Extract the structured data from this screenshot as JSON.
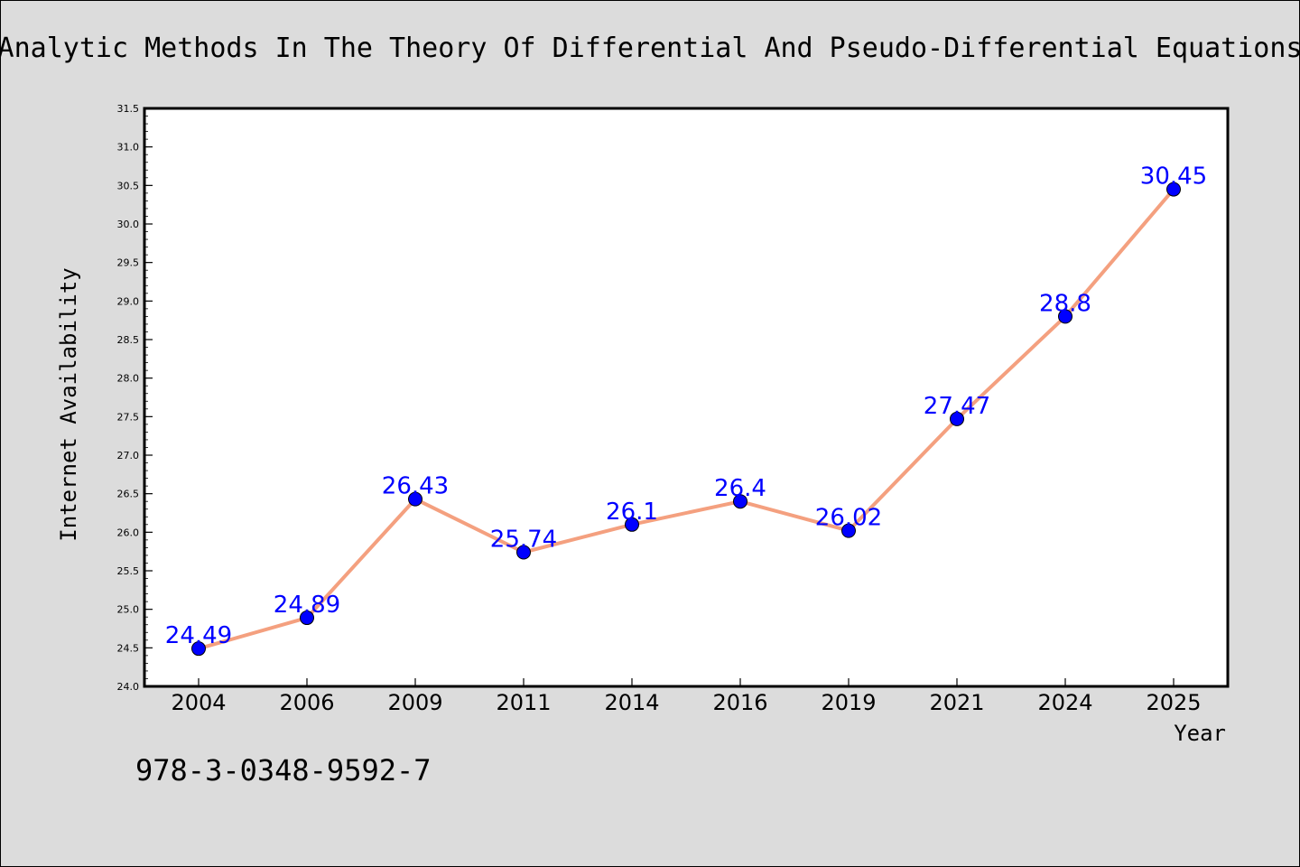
{
  "chart_data": {
    "type": "line",
    "title": "Analytic Methods In The Theory Of Differential And Pseudo-Differential Equations",
    "xlabel": "Year",
    "ylabel": "Internet Availability",
    "categories": [
      "2004",
      "2006",
      "2009",
      "2011",
      "2014",
      "2016",
      "2019",
      "2021",
      "2024",
      "2025"
    ],
    "series": [
      {
        "values": [
          24.49,
          24.89,
          26.43,
          25.74,
          26.1,
          26.4,
          26.02,
          27.47,
          28.8,
          30.45
        ],
        "labels": [
          "24.49",
          "24.89",
          "26.43",
          "25.74",
          "26.1",
          "26.4",
          "26.02",
          "27.47",
          "28.8",
          "30.45"
        ]
      }
    ],
    "ylim": [
      24.0,
      31.5
    ],
    "yticks": [
      "24.0",
      "24.5",
      "25.0",
      "25.5",
      "26.0",
      "26.5",
      "27.0",
      "27.5",
      "28.0",
      "28.5",
      "29.0",
      "29.5",
      "30.0",
      "30.5",
      "31.0",
      "31.5"
    ],
    "grid": false,
    "legend": "none",
    "colors": {
      "line": "#f4a07f",
      "marker": "#0000ff",
      "data_label": "#0000ff",
      "background": "#dcdcdc",
      "plot_background": "#ffffff"
    }
  },
  "footer": {
    "isbn": "978-3-0348-9592-7"
  }
}
